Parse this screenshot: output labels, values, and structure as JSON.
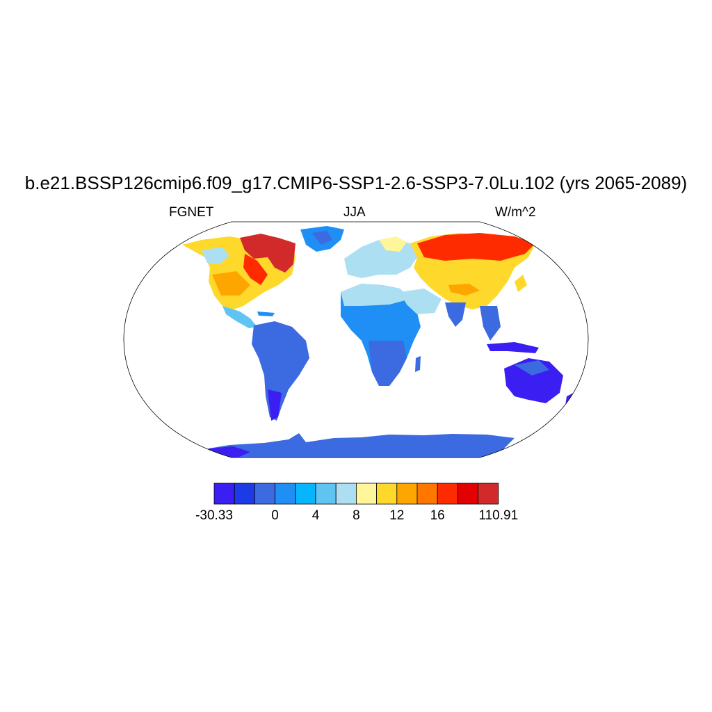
{
  "title": "b.e21.BSSP126cmip6.f09_g17.CMIP6-SSP1-2.6-SSP3-7.0Lu.102 (yrs 2065-2089)",
  "left_label": "FGNET",
  "center_label": "JJA",
  "right_label": "W/m^2",
  "colorbar": {
    "colors": [
      "#3b1ef2",
      "#1c3ae6",
      "#3c6ae0",
      "#1f8ff5",
      "#06b5fb",
      "#5fc4f2",
      "#addff2",
      "#fff59a",
      "#fed82b",
      "#fea600",
      "#ff7600",
      "#ff2b00",
      "#e20000",
      "#d22a2a"
    ],
    "labels": [
      {
        "text": "-30.33",
        "edge": 0
      },
      {
        "text": "0",
        "edge": 3
      },
      {
        "text": "4",
        "edge": 5
      },
      {
        "text": "8",
        "edge": 7
      },
      {
        "text": "12",
        "edge": 9
      },
      {
        "text": "16",
        "edge": 11
      },
      {
        "text": "110.91",
        "edge": 14
      }
    ]
  }
}
